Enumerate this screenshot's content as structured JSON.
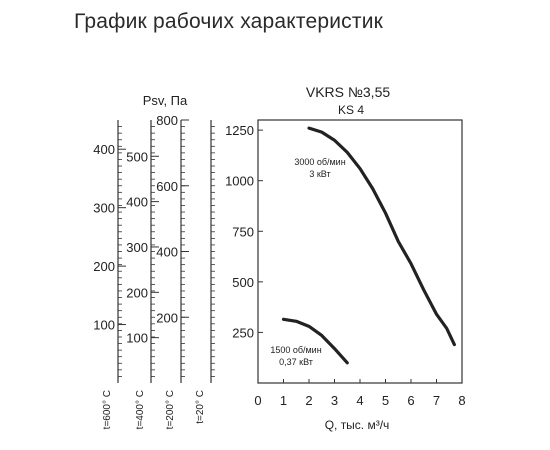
{
  "page": {
    "title": "График рабочих характеристик"
  },
  "chart_data": {
    "type": "line",
    "title": "VKRS №3,55",
    "subtitle": "KS 4",
    "xlabel": "Q, тыс. м³/ч",
    "ylabel": "Psv, Па",
    "xlim": [
      0,
      8
    ],
    "ylim": [
      0,
      1300
    ],
    "x_ticks": [
      "0",
      "1",
      "2",
      "3",
      "4",
      "5",
      "6",
      "7",
      "8"
    ],
    "y_ticks": [
      "250",
      "500",
      "750",
      "1000",
      "1250"
    ],
    "grid": false,
    "series": [
      {
        "name": "3000 об/мин",
        "label_lines": [
          "3000 об/мин",
          "3 кВт"
        ],
        "x": [
          2.0,
          2.5,
          3.0,
          3.5,
          4.0,
          4.5,
          5.0,
          5.5,
          6.0,
          6.5,
          7.0,
          7.4,
          7.7
        ],
        "y": [
          1260,
          1240,
          1200,
          1140,
          1060,
          960,
          840,
          700,
          590,
          460,
          340,
          270,
          190
        ]
      },
      {
        "name": "1500 об/мин",
        "label_lines": [
          "1500 об/мин",
          "0,37 кВт"
        ],
        "x": [
          1.0,
          1.5,
          2.0,
          2.5,
          3.0,
          3.5
        ],
        "y": [
          315,
          305,
          280,
          235,
          170,
          100
        ]
      }
    ],
    "aux_axes": [
      {
        "temp_label": "t=600° C",
        "max": 450,
        "ticks": [
          "100",
          "200",
          "300",
          "400"
        ],
        "unit_label": ""
      },
      {
        "temp_label": "t=400° C",
        "max": 580,
        "ticks": [
          "100",
          "200",
          "300",
          "400",
          "500"
        ],
        "unit_label": "Psv, Па"
      },
      {
        "temp_label": "t=200° C",
        "max": 800,
        "ticks": [
          "200",
          "400",
          "600",
          "800"
        ],
        "unit_label": ""
      },
      {
        "temp_label": "t=20° C",
        "max": 1300,
        "ticks": [],
        "unit_label": ""
      }
    ]
  }
}
